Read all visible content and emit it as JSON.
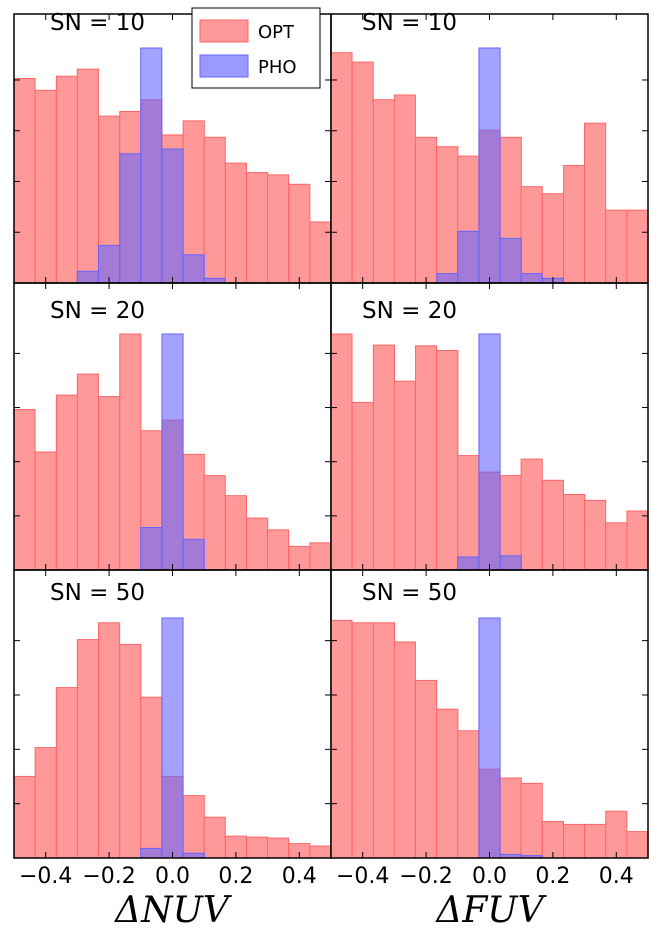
{
  "chart_data": [
    {
      "type": "bar",
      "panel": "SN = 10",
      "xlabel": "ΔNUV",
      "xlim": [
        -0.5,
        0.5
      ],
      "bin_width": 0.0667,
      "x": [
        -0.467,
        -0.4,
        -0.333,
        -0.267,
        -0.2,
        -0.133,
        -0.067,
        0.0,
        0.067,
        0.133,
        0.2,
        0.267,
        0.333,
        0.4,
        0.467
      ],
      "series": [
        {
          "name": "OPT",
          "color": "#ff6666",
          "values": [
            0.87,
            0.82,
            0.88,
            0.91,
            0.71,
            0.73,
            0.78,
            0.63,
            0.69,
            0.62,
            0.51,
            0.47,
            0.46,
            0.42,
            0.26
          ]
        },
        {
          "name": "PHO",
          "color": "#6666ff",
          "values": [
            0.0,
            0.0,
            0.0,
            0.05,
            0.16,
            0.55,
            1.0,
            0.57,
            0.12,
            0.02,
            0.0,
            0.0,
            0.0,
            0.0,
            0.0
          ]
        }
      ]
    },
    {
      "type": "bar",
      "panel": "SN = 10",
      "xlabel": "ΔFUV",
      "xlim": [
        -0.5,
        0.5
      ],
      "bin_width": 0.0667,
      "x": [
        -0.467,
        -0.4,
        -0.333,
        -0.267,
        -0.2,
        -0.133,
        -0.067,
        0.0,
        0.067,
        0.133,
        0.2,
        0.267,
        0.333,
        0.4,
        0.467
      ],
      "series": [
        {
          "name": "OPT",
          "color": "#ff6666",
          "values": [
            0.98,
            0.94,
            0.78,
            0.8,
            0.62,
            0.58,
            0.54,
            0.65,
            0.62,
            0.41,
            0.38,
            0.5,
            0.68,
            0.31,
            0.31
          ]
        },
        {
          "name": "PHO",
          "color": "#6666ff",
          "values": [
            0.0,
            0.0,
            0.0,
            0.0,
            0.0,
            0.04,
            0.22,
            1.0,
            0.19,
            0.04,
            0.02,
            0.0,
            0.0,
            0.0,
            0.0
          ]
        }
      ]
    },
    {
      "type": "bar",
      "panel": "SN = 20",
      "xlabel": "ΔNUV",
      "xlim": [
        -0.5,
        0.5
      ],
      "bin_width": 0.0667,
      "x": [
        -0.467,
        -0.4,
        -0.333,
        -0.267,
        -0.2,
        -0.133,
        -0.067,
        0.0,
        0.067,
        0.133,
        0.2,
        0.267,
        0.333,
        0.4,
        0.467
      ],
      "series": [
        {
          "name": "OPT",
          "color": "#ff6666",
          "values": [
            0.68,
            0.5,
            0.741,
            0.83,
            0.735,
            1.0,
            0.59,
            0.635,
            0.49,
            0.4,
            0.315,
            0.22,
            0.17,
            0.1,
            0.115
          ]
        },
        {
          "name": "PHO",
          "color": "#6666ff",
          "values": [
            0.0,
            0.0,
            0.0,
            0.0,
            0.0,
            0.0,
            0.18,
            1.0,
            0.13,
            0.0,
            0.0,
            0.0,
            0.0,
            0.0,
            0.0
          ]
        }
      ]
    },
    {
      "type": "bar",
      "panel": "SN = 20",
      "xlabel": "ΔFUV",
      "xlim": [
        -0.5,
        0.5
      ],
      "bin_width": 0.0667,
      "x": [
        -0.467,
        -0.4,
        -0.333,
        -0.267,
        -0.2,
        -0.133,
        -0.067,
        0.0,
        0.067,
        0.133,
        0.2,
        0.267,
        0.333,
        0.4,
        0.467
      ],
      "series": [
        {
          "name": "OPT",
          "color": "#ff6666",
          "values": [
            1.0,
            0.71,
            0.953,
            0.8,
            0.95,
            0.93,
            0.485,
            0.415,
            0.4,
            0.47,
            0.38,
            0.32,
            0.295,
            0.2,
            0.25
          ]
        },
        {
          "name": "PHO",
          "color": "#6666ff",
          "values": [
            0.0,
            0.0,
            0.0,
            0.0,
            0.0,
            0.0,
            0.055,
            1.0,
            0.06,
            0.0,
            0.0,
            0.0,
            0.0,
            0.0,
            0.0
          ]
        }
      ]
    },
    {
      "type": "bar",
      "panel": "SN = 50",
      "xlabel": "ΔNUV",
      "xlim": [
        -0.5,
        0.5
      ],
      "bin_width": 0.0667,
      "x": [
        -0.467,
        -0.4,
        -0.333,
        -0.267,
        -0.2,
        -0.133,
        -0.067,
        0.0,
        0.067,
        0.133,
        0.2,
        0.267,
        0.333,
        0.4,
        0.467
      ],
      "series": [
        {
          "name": "OPT",
          "color": "#ff6666",
          "values": [
            0.34,
            0.46,
            0.71,
            0.91,
            0.98,
            0.89,
            0.67,
            0.34,
            0.26,
            0.17,
            0.091,
            0.087,
            0.083,
            0.06,
            0.05
          ]
        },
        {
          "name": "PHO",
          "color": "#6666ff",
          "values": [
            0.0,
            0.0,
            0.0,
            0.0,
            0.0,
            0.0,
            0.04,
            1.0,
            0.02,
            0.0,
            0.0,
            0.0,
            0.0,
            0.0,
            0.0
          ]
        }
      ]
    },
    {
      "type": "bar",
      "panel": "SN = 50",
      "xlabel": "ΔFUV",
      "xlim": [
        -0.5,
        0.5
      ],
      "bin_width": 0.0667,
      "x": [
        -0.467,
        -0.4,
        -0.333,
        -0.267,
        -0.2,
        -0.133,
        -0.067,
        0.0,
        0.067,
        0.133,
        0.2,
        0.267,
        0.333,
        0.4,
        0.467
      ],
      "series": [
        {
          "name": "OPT",
          "color": "#ff6666",
          "values": [
            0.99,
            0.98,
            0.98,
            0.9,
            0.74,
            0.62,
            0.53,
            0.37,
            0.333,
            0.311,
            0.152,
            0.14,
            0.14,
            0.195,
            0.11
          ]
        },
        {
          "name": "PHO",
          "color": "#6666ff",
          "values": [
            0.0,
            0.0,
            0.0,
            0.0,
            0.0,
            0.0,
            0.0,
            1.0,
            0.015,
            0.01,
            0.0,
            0.0,
            0.0,
            0.0,
            0.0
          ]
        }
      ]
    }
  ],
  "panel_labels": [
    "SN = 10",
    "SN = 10",
    "SN = 20",
    "SN = 20",
    "SN = 50",
    "SN = 50"
  ],
  "xticks": [
    "−0.4",
    "−0.2",
    "0.0",
    "0.2",
    "0.4"
  ],
  "xtick_values": [
    -0.4,
    -0.2,
    0.0,
    0.2,
    0.4
  ],
  "xlabels": {
    "left": "ΔNUV",
    "right": "ΔFUV"
  },
  "legend": {
    "position": "top-right of top-left panel",
    "items": [
      {
        "label": "OPT",
        "color": "#ff6666"
      },
      {
        "label": "PHO",
        "color": "#6666ff"
      }
    ]
  }
}
